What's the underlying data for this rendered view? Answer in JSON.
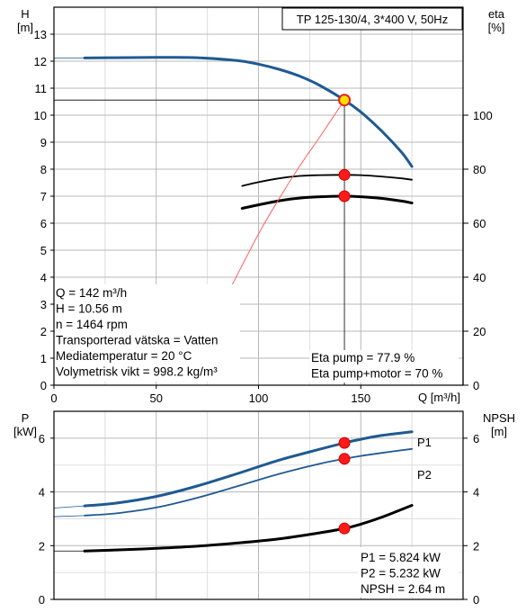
{
  "chart_data": [
    {
      "type": "line",
      "title": "TP 125-130/4, 3*400 V, 50Hz",
      "xlabel": "Q [m³/h]",
      "ylabel_left": [
        "H",
        "[m]"
      ],
      "ylabel_right": [
        "eta",
        "[%]"
      ],
      "xlim": [
        0,
        200
      ],
      "xticks": [
        "0",
        "50",
        "100",
        "150"
      ],
      "ylim_left": [
        0,
        14
      ],
      "yticks_left": [
        "0",
        "1",
        "2",
        "3",
        "4",
        "5",
        "6",
        "7",
        "8",
        "9",
        "10",
        "11",
        "12",
        "13"
      ],
      "ylim_right": [
        0,
        140
      ],
      "yticks_right": [
        "0",
        "20",
        "40",
        "60",
        "80",
        "100"
      ],
      "grid": true,
      "series": [
        {
          "name": "H",
          "axis": "left",
          "color": "#1f5a92",
          "x": [
            15,
            30,
            50,
            70,
            90,
            100,
            110,
            120,
            130,
            142,
            150,
            160,
            170,
            175
          ],
          "y": [
            12.12,
            12.13,
            12.14,
            12.13,
            12.02,
            11.89,
            11.7,
            11.45,
            11.1,
            10.56,
            10.12,
            9.43,
            8.62,
            8.1
          ]
        },
        {
          "name": "Eta pump",
          "axis": "right",
          "color": "#000000",
          "x": [
            92,
            100,
            110,
            120,
            130,
            142,
            150,
            160,
            170,
            175
          ],
          "y": [
            73.8,
            75.2,
            76.6,
            77.5,
            77.8,
            77.9,
            77.8,
            77.3,
            76.6,
            76.1
          ]
        },
        {
          "name": "Eta pump+motor",
          "axis": "right",
          "color": "#000000",
          "x": [
            92,
            100,
            110,
            120,
            130,
            142,
            150,
            160,
            170,
            175
          ],
          "y": [
            65.5,
            66.8,
            68.3,
            69.3,
            69.8,
            70,
            69.8,
            69.2,
            68.2,
            67.5
          ]
        },
        {
          "name": "system curve",
          "axis": "left",
          "color": "#ff6060",
          "x": [
            87,
            100,
            110,
            120,
            130,
            142
          ],
          "y": [
            3.7,
            5.6,
            6.9,
            8.1,
            9.2,
            10.56
          ]
        }
      ],
      "operating_point": {
        "x": 142,
        "y": 10.56,
        "color": "#ffe000"
      },
      "eta_points": [
        77.9,
        70
      ],
      "info_lines": [
        "Q = 142 m³/h",
        "H = 10.56 m",
        "n = 1464 rpm",
        "Transporterad vätska = Vatten",
        "Mediatemperatur = 20 °C",
        "Volymetrisk vikt = 998.2 kg/m³"
      ],
      "eta_lines": [
        "Eta pump = 77.9 %",
        "Eta pump+motor = 70 %"
      ]
    },
    {
      "type": "line",
      "xlim": [
        0,
        200
      ],
      "ylabel_left": [
        "P",
        "[kW]"
      ],
      "ylabel_right": [
        "NPSH",
        "[m]"
      ],
      "ylim_left": [
        0,
        7
      ],
      "yticks_left": [
        "0",
        "2",
        "4",
        "6"
      ],
      "ylim_right": [
        0,
        7
      ],
      "yticks_right": [
        "0",
        "2",
        "4",
        "6"
      ],
      "grid": true,
      "series": [
        {
          "name": "P1",
          "axis": "left",
          "color": "#1f5a92",
          "x": [
            15,
            30,
            50,
            70,
            90,
            110,
            130,
            142,
            150,
            160,
            175
          ],
          "y": [
            3.48,
            3.58,
            3.83,
            4.22,
            4.69,
            5.18,
            5.59,
            5.824,
            5.96,
            6.1,
            6.24
          ]
        },
        {
          "name": "P2",
          "axis": "left",
          "color": "#1f5a92",
          "x": [
            15,
            30,
            50,
            70,
            90,
            110,
            130,
            142,
            150,
            160,
            175
          ],
          "y": [
            3.12,
            3.2,
            3.42,
            3.78,
            4.22,
            4.67,
            5.05,
            5.232,
            5.34,
            5.45,
            5.6
          ]
        },
        {
          "name": "NPSH",
          "axis": "right",
          "color": "#000000",
          "x": [
            15,
            30,
            50,
            70,
            90,
            110,
            130,
            142,
            150,
            160,
            175
          ],
          "y": [
            1.8,
            1.84,
            1.9,
            1.98,
            2.1,
            2.25,
            2.48,
            2.64,
            2.8,
            3.05,
            3.5
          ]
        }
      ],
      "points": [
        {
          "series": "P1",
          "x": 142,
          "y": 5.824
        },
        {
          "series": "P2",
          "x": 142,
          "y": 5.232
        },
        {
          "series": "NPSH",
          "x": 142,
          "y": 2.64
        }
      ],
      "info_lines": [
        "P1 = 5.824 kW",
        "P2 = 5.232 kW",
        "NPSH = 2.64 m"
      ]
    }
  ]
}
